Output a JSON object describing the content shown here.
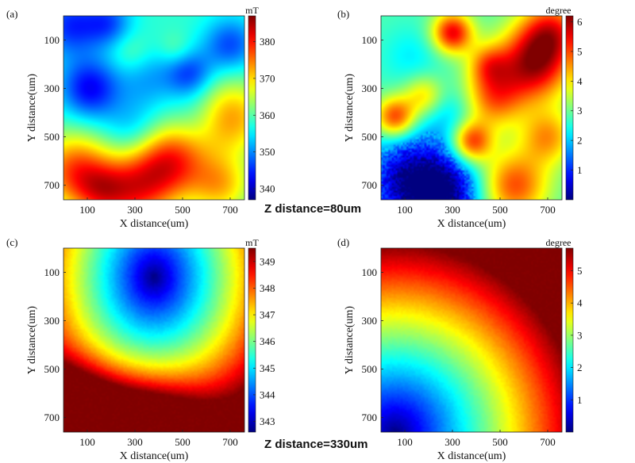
{
  "figure": {
    "z_label_top": "Z distance=80um",
    "z_label_bottom": "Z distance=330um"
  },
  "chart_data": [
    {
      "type": "heatmap",
      "panel_label": "(a)",
      "xlabel": "X distance(um)",
      "ylabel": "Y distance(um)",
      "xticks": [
        "100",
        "300",
        "500",
        "700"
      ],
      "yticks": [
        "100",
        "300",
        "500",
        "700"
      ],
      "xlim": [
        0,
        760
      ],
      "ylim": [
        0,
        760
      ],
      "colorbar": {
        "unit": "mT",
        "min": 337,
        "max": 387,
        "ticks": [
          "340",
          "350",
          "360",
          "370",
          "380"
        ]
      },
      "colormap": "jet",
      "blobs": [
        {
          "x": 30,
          "y": 40,
          "v": -1.0,
          "r": 90
        },
        {
          "x": 190,
          "y": 30,
          "v": -0.8,
          "r": 70
        },
        {
          "x": 700,
          "y": 120,
          "v": -0.9,
          "r": 80
        },
        {
          "x": 110,
          "y": 300,
          "v": -1.2,
          "r": 90
        },
        {
          "x": 530,
          "y": 240,
          "v": -0.9,
          "r": 70
        },
        {
          "x": 360,
          "y": 260,
          "v": -0.5,
          "r": 90
        },
        {
          "x": 290,
          "y": 470,
          "v": -0.5,
          "r": 90
        },
        {
          "x": 560,
          "y": 420,
          "v": -0.3,
          "r": 80
        },
        {
          "x": 280,
          "y": 150,
          "v": 0.3,
          "r": 60
        },
        {
          "x": 470,
          "y": 140,
          "v": 0.3,
          "r": 50
        },
        {
          "x": 50,
          "y": 640,
          "v": 1.5,
          "r": 110
        },
        {
          "x": 450,
          "y": 600,
          "v": 1.6,
          "r": 110
        },
        {
          "x": 300,
          "y": 720,
          "v": 1.4,
          "r": 110
        },
        {
          "x": 700,
          "y": 420,
          "v": 1.2,
          "r": 110
        },
        {
          "x": 660,
          "y": 700,
          "v": 1.0,
          "r": 90
        },
        {
          "x": 160,
          "y": 730,
          "v": 0.8,
          "r": 80
        }
      ]
    },
    {
      "type": "heatmap",
      "panel_label": "(b)",
      "xlabel": "X distance(um)",
      "ylabel": "Y distance(um)",
      "xticks": [
        "100",
        "300",
        "500",
        "700"
      ],
      "yticks": [
        "100",
        "300",
        "500",
        "700"
      ],
      "xlim": [
        0,
        760
      ],
      "ylim": [
        0,
        760
      ],
      "colorbar": {
        "unit": "degree",
        "min": 0,
        "max": 6.2,
        "ticks": [
          "1",
          "2",
          "3",
          "4",
          "5",
          "6"
        ]
      },
      "colormap": "jet",
      "blobs": [
        {
          "x": 300,
          "y": 70,
          "v": 2.0,
          "r": 60
        },
        {
          "x": 640,
          "y": 200,
          "v": 2.2,
          "r": 110
        },
        {
          "x": 720,
          "y": 60,
          "v": 1.5,
          "r": 90
        },
        {
          "x": 450,
          "y": 200,
          "v": 1.0,
          "r": 60
        },
        {
          "x": 470,
          "y": 340,
          "v": 1.4,
          "r": 90
        },
        {
          "x": 60,
          "y": 420,
          "v": 1.8,
          "r": 60
        },
        {
          "x": 180,
          "y": 330,
          "v": 1.0,
          "r": 60
        },
        {
          "x": 380,
          "y": 520,
          "v": 1.8,
          "r": 60
        },
        {
          "x": 700,
          "y": 500,
          "v": 1.2,
          "r": 80
        },
        {
          "x": 560,
          "y": 700,
          "v": 1.6,
          "r": 100
        },
        {
          "x": 150,
          "y": 690,
          "v": -2.2,
          "r": 140
        },
        {
          "x": 300,
          "y": 740,
          "v": -1.0,
          "r": 90
        },
        {
          "x": 300,
          "y": 400,
          "v": -0.5,
          "r": 80
        },
        {
          "x": 130,
          "y": 170,
          "v": -0.4,
          "r": 90
        }
      ]
    },
    {
      "type": "heatmap",
      "panel_label": "(c)",
      "xlabel": "X distance(um)",
      "ylabel": "Y distance(um)",
      "xticks": [
        "100",
        "300",
        "500",
        "700"
      ],
      "yticks": [
        "100",
        "300",
        "500",
        "700"
      ],
      "xlim": [
        0,
        760
      ],
      "ylim": [
        0,
        760
      ],
      "colorbar": {
        "unit": "mT",
        "min": 342.6,
        "max": 349.5,
        "ticks": [
          "343",
          "344",
          "345",
          "346",
          "347",
          "348",
          "349"
        ]
      },
      "colormap": "jet"
    },
    {
      "type": "heatmap",
      "panel_label": "(d)",
      "xlabel": "X distance(um)",
      "ylabel": "Y distance(um)",
      "xticks": [
        "100",
        "300",
        "500",
        "700"
      ],
      "yticks": [
        "100",
        "300",
        "500",
        "700"
      ],
      "xlim": [
        0,
        760
      ],
      "ylim": [
        0,
        760
      ],
      "colorbar": {
        "unit": "degree",
        "min": 0,
        "max": 5.7,
        "ticks": [
          "1",
          "2",
          "3",
          "4",
          "5"
        ]
      },
      "colormap": "jet"
    }
  ]
}
